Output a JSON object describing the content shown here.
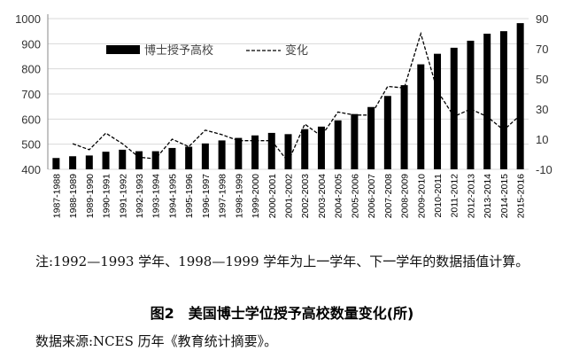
{
  "chart_data": {
    "type": "bar",
    "title": "图2　美国博士学位授予高校数量变化(所)",
    "categories": [
      "1987-1988",
      "1988-1989",
      "1989-1990",
      "1990-1991",
      "1991-1992",
      "1992-1993",
      "1993-1994",
      "1994-1995",
      "1995-1996",
      "1996-1997",
      "1997-1998",
      "1998-1999",
      "1999-2000",
      "2000-2001",
      "2001-2002",
      "2002-2003",
      "2003-2004",
      "2004-2005",
      "2005-2006",
      "2006-2007",
      "2007-2008",
      "2008-2009",
      "2009-2010",
      "2010-2011",
      "2011-2012",
      "2012-2013",
      "2013-2014",
      "2014-2015",
      "2015-2016"
    ],
    "series": [
      {
        "name": "博士授予高校",
        "type": "bar",
        "axis": "left",
        "values": [
          445,
          452,
          455,
          470,
          478,
          472,
          472,
          485,
          490,
          503,
          515,
          525,
          535,
          545,
          540,
          560,
          570,
          595,
          620,
          648,
          692,
          735,
          818,
          860,
          884,
          912,
          940,
          950,
          982
        ]
      },
      {
        "name": "变化",
        "type": "line",
        "axis": "right",
        "values": [
          null,
          7,
          3,
          14,
          7,
          -2,
          -3,
          10,
          5,
          16,
          13,
          9,
          9,
          9,
          -5,
          20,
          12,
          28,
          26,
          26,
          45,
          44,
          80,
          42,
          25,
          30,
          25,
          16,
          26
        ]
      }
    ],
    "ylim": [
      400,
      1000
    ],
    "yticks": [
      400,
      500,
      600,
      700,
      800,
      900,
      1000
    ],
    "y2lim": [
      -10,
      90
    ],
    "y2ticks": [
      -10,
      10,
      30,
      50,
      70,
      90
    ],
    "grid": true,
    "legend": "top-center"
  },
  "note": "注:1992—1993 学年、1998—1999 学年为上一学年、下一学年的数据插值计算。",
  "caption": "图2　美国博士学位授予高校数量变化(所)",
  "source": "数据来源:NCES 历年《教育统计摘要》。"
}
